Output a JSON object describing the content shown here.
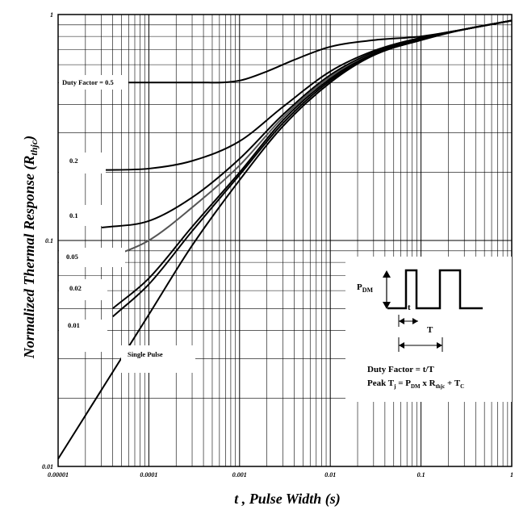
{
  "chart_data": {
    "type": "line",
    "xscale": "log",
    "yscale": "log",
    "xlim": [
      1e-05,
      1
    ],
    "ylim": [
      0.01,
      1
    ],
    "grid": true,
    "xlabel": "t , Pulse Width (s)",
    "ylabel_main": "Normalized Thermal Response (R",
    "ylabel_sub": "thjc",
    "ylabel_close": ")",
    "x_ticks": [
      {
        "value": 1e-05,
        "label": "0.00001"
      },
      {
        "value": 0.0001,
        "label": "0.0001"
      },
      {
        "value": 0.001,
        "label": "0.001"
      },
      {
        "value": 0.01,
        "label": "0.01"
      },
      {
        "value": 0.1,
        "label": "0.1"
      },
      {
        "value": 1,
        "label": "1"
      }
    ],
    "y_ticks": [
      {
        "value": 0.01,
        "label": "0.01"
      },
      {
        "value": 0.1,
        "label": "0.1"
      },
      {
        "value": 1,
        "label": "1"
      }
    ],
    "series": [
      {
        "name": "Duty Factor = 0.5",
        "color": "#000000",
        "x": [
          2e-05,
          0.0001,
          0.0004,
          0.001,
          0.002,
          0.004,
          0.01,
          0.03,
          0.1,
          0.3,
          1
        ],
        "y": [
          0.5,
          0.5,
          0.5,
          0.51,
          0.56,
          0.63,
          0.72,
          0.77,
          0.8,
          0.86,
          0.94
        ]
      },
      {
        "name": "0.2",
        "color": "#000000",
        "x": [
          3e-05,
          0.0001,
          0.0003,
          0.001,
          0.003,
          0.01,
          0.03,
          0.1,
          0.3,
          1
        ],
        "y": [
          0.205,
          0.208,
          0.225,
          0.275,
          0.39,
          0.56,
          0.69,
          0.79,
          0.86,
          0.94
        ]
      },
      {
        "name": "0.1",
        "color": "#000000",
        "x": [
          3e-05,
          0.0001,
          0.0003,
          0.001,
          0.003,
          0.01,
          0.03,
          0.1,
          0.3,
          1
        ],
        "y": [
          0.114,
          0.122,
          0.155,
          0.23,
          0.36,
          0.54,
          0.68,
          0.78,
          0.86,
          0.94
        ]
      },
      {
        "name": "0.05",
        "color": "#555555",
        "x": [
          4e-05,
          0.0001,
          0.0003,
          0.001,
          0.003,
          0.01,
          0.03,
          0.1,
          0.3,
          1
        ],
        "y": [
          0.085,
          0.1,
          0.14,
          0.215,
          0.35,
          0.53,
          0.67,
          0.78,
          0.86,
          0.94
        ]
      },
      {
        "name": "0.02",
        "color": "#000000",
        "x": [
          4e-05,
          0.0001,
          0.0003,
          0.001,
          0.003,
          0.01,
          0.03,
          0.1,
          0.3,
          1
        ],
        "y": [
          0.05,
          0.068,
          0.115,
          0.2,
          0.34,
          0.52,
          0.67,
          0.78,
          0.86,
          0.94
        ]
      },
      {
        "name": "0.01",
        "color": "#000000",
        "x": [
          4e-05,
          0.0001,
          0.0003,
          0.001,
          0.003,
          0.01,
          0.03,
          0.1,
          0.3,
          1
        ],
        "y": [
          0.046,
          0.064,
          0.11,
          0.195,
          0.33,
          0.51,
          0.66,
          0.78,
          0.86,
          0.94
        ]
      },
      {
        "name": "Single Pulse",
        "color": "#000000",
        "x": [
          1e-05,
          0.0001,
          0.0003,
          0.001,
          0.003,
          0.01,
          0.03,
          0.1,
          0.3,
          1
        ],
        "y": [
          0.0108,
          0.047,
          0.095,
          0.185,
          0.32,
          0.5,
          0.66,
          0.77,
          0.86,
          0.94
        ]
      }
    ],
    "labels": [
      {
        "text": "Duty Factor = 0.5"
      },
      {
        "text": "0.2"
      },
      {
        "text": "0.1"
      },
      {
        "text": "0.05"
      },
      {
        "text": "0.02"
      },
      {
        "text": "0.01"
      },
      {
        "text": "Single Pulse"
      }
    ],
    "inset": {
      "pdm_label": "P",
      "pdm_sub": "DM",
      "t_label": "t",
      "T_label": "T",
      "duty_text": "Duty Factor = t/T",
      "peak_prefix": "Peak T",
      "peak_j": "j",
      "peak_mid": " = P",
      "peak_dm": "DM",
      "peak_x": " x R",
      "peak_thjc": "thjc",
      "peak_plus": " + T",
      "peak_c": "C"
    }
  }
}
